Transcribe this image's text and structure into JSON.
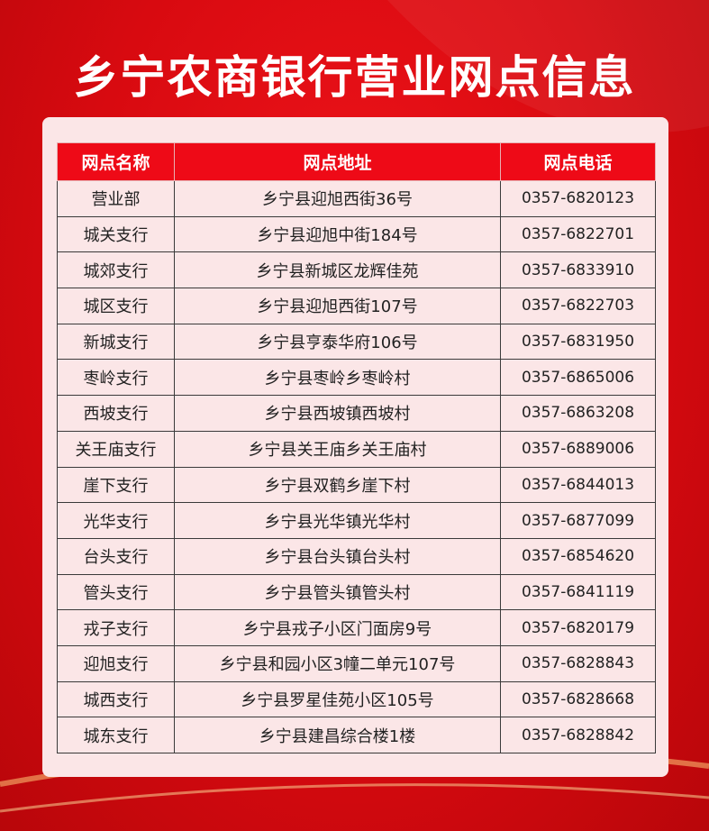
{
  "title": "乡宁农商银行营业网点信息",
  "colors": {
    "background": "#d80a10",
    "header": "#ee0a17",
    "card": "#fbe6e7"
  },
  "table": {
    "headers": [
      "网点名称",
      "网点地址",
      "网点电话"
    ],
    "rows": [
      {
        "name": "营业部",
        "address": "乡宁县迎旭西街36号",
        "phone": "0357-6820123"
      },
      {
        "name": "城关支行",
        "address": "乡宁县迎旭中街184号",
        "phone": "0357-6822701"
      },
      {
        "name": "城郊支行",
        "address": "乡宁县新城区龙辉佳苑",
        "phone": "0357-6833910"
      },
      {
        "name": "城区支行",
        "address": "乡宁县迎旭西街107号",
        "phone": "0357-6822703"
      },
      {
        "name": "新城支行",
        "address": "乡宁县亨泰华府106号",
        "phone": "0357-6831950"
      },
      {
        "name": "枣岭支行",
        "address": "乡宁县枣岭乡枣岭村",
        "phone": "0357-6865006"
      },
      {
        "name": "西坡支行",
        "address": "乡宁县西坡镇西坡村",
        "phone": "0357-6863208"
      },
      {
        "name": "关王庙支行",
        "address": "乡宁县关王庙乡关王庙村",
        "phone": "0357-6889006"
      },
      {
        "name": "崖下支行",
        "address": "乡宁县双鹤乡崖下村",
        "phone": "0357-6844013"
      },
      {
        "name": "光华支行",
        "address": "乡宁县光华镇光华村",
        "phone": "0357-6877099"
      },
      {
        "name": "台头支行",
        "address": "乡宁县台头镇台头村",
        "phone": "0357-6854620"
      },
      {
        "name": "管头支行",
        "address": "乡宁县管头镇管头村",
        "phone": "0357-6841119"
      },
      {
        "name": "戎子支行",
        "address": "乡宁县戎子小区门面房9号",
        "phone": "0357-6820179"
      },
      {
        "name": "迎旭支行",
        "address": "乡宁县和园小区3幢二单元107号",
        "phone": "0357-6828843"
      },
      {
        "name": "城西支行",
        "address": "乡宁县罗星佳苑小区105号",
        "phone": "0357-6828668"
      },
      {
        "name": "城东支行",
        "address": "乡宁县建昌综合楼1楼",
        "phone": "0357-6828842"
      }
    ]
  }
}
